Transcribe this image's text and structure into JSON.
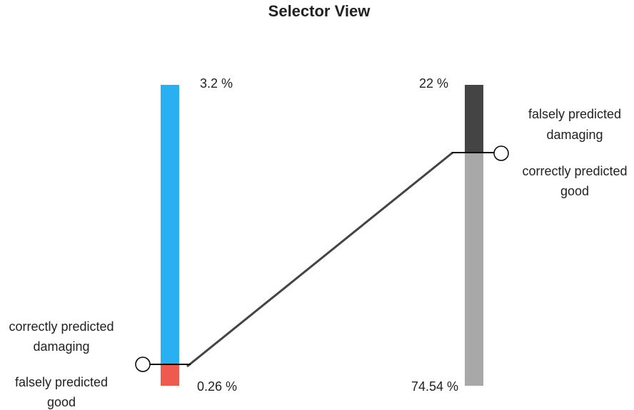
{
  "header": {
    "title": "Selector View"
  },
  "left_selector": {
    "top_value": "3.2 %",
    "bottom_value": "0.26 %",
    "upper_label": [
      "correctly predicted",
      "damaging"
    ],
    "lower_label": [
      "falsely predicted",
      "good"
    ]
  },
  "right_selector": {
    "top_value": "22 %",
    "bottom_value": "74.54 %",
    "upper_label": [
      "falsely predicted",
      "damaging"
    ],
    "lower_label": [
      "correctly predicted",
      "good"
    ]
  }
}
